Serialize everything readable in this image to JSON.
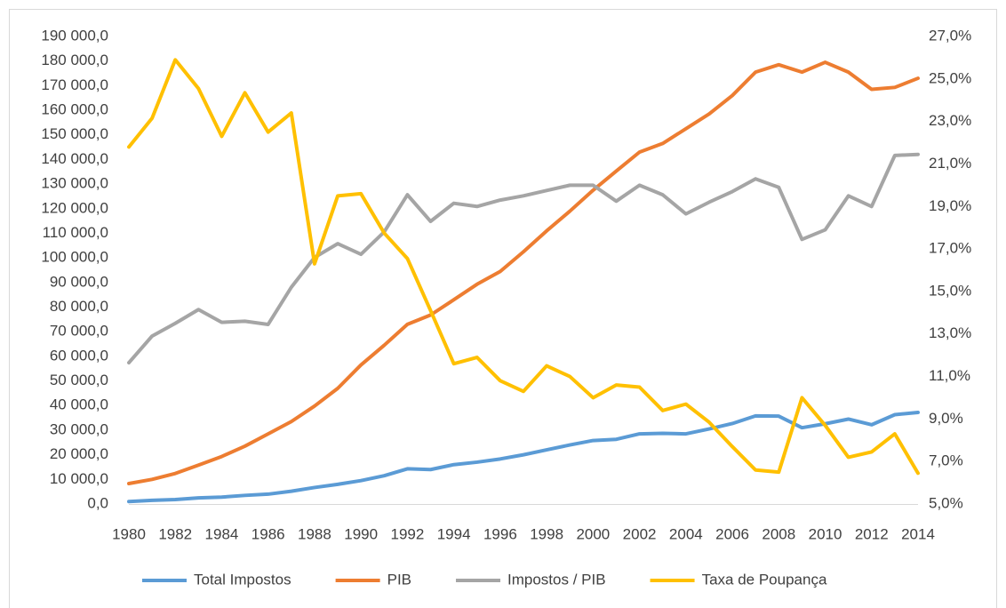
{
  "chart_data": {
    "type": "line",
    "categories": [
      "1980",
      null,
      "1982",
      null,
      "1984",
      null,
      "1986",
      null,
      "1988",
      null,
      "1990",
      null,
      "1992",
      null,
      "1994",
      null,
      "1996",
      null,
      "1998",
      null,
      "2000",
      null,
      "2002",
      null,
      "2004",
      null,
      "2006",
      null,
      "2008",
      null,
      "2010",
      null,
      "2012",
      null,
      "2014"
    ],
    "ylim": [
      0,
      190000
    ],
    "yticks": [
      {
        "value": 0,
        "label": "0,0"
      },
      {
        "value": 10000,
        "label": "10 000,0"
      },
      {
        "value": 20000,
        "label": "20 000,0"
      },
      {
        "value": 30000,
        "label": "30 000,0"
      },
      {
        "value": 40000,
        "label": "40 000,0"
      },
      {
        "value": 50000,
        "label": "50 000,0"
      },
      {
        "value": 60000,
        "label": "60 000,0"
      },
      {
        "value": 70000,
        "label": "70 000,0"
      },
      {
        "value": 80000,
        "label": "80 000,0"
      },
      {
        "value": 90000,
        "label": "90 000,0"
      },
      {
        "value": 100000,
        "label": "100 000,0"
      },
      {
        "value": 110000,
        "label": "110 000,0"
      },
      {
        "value": 120000,
        "label": "120 000,0"
      },
      {
        "value": 130000,
        "label": "130 000,0"
      },
      {
        "value": 140000,
        "label": "140 000,0"
      },
      {
        "value": 150000,
        "label": "150 000,0"
      },
      {
        "value": 160000,
        "label": "160 000,0"
      },
      {
        "value": 170000,
        "label": "170 000,0"
      },
      {
        "value": 180000,
        "label": "180 000,0"
      },
      {
        "value": 190000,
        "label": "190 000,0"
      }
    ],
    "y2lim": [
      5,
      27
    ],
    "y2ticks": [
      {
        "value": 5,
        "label": "5,0%"
      },
      {
        "value": 7,
        "label": "7,0%"
      },
      {
        "value": 9,
        "label": "9,0%"
      },
      {
        "value": 11,
        "label": "11,0%"
      },
      {
        "value": 13,
        "label": "13,0%"
      },
      {
        "value": 15,
        "label": "15,0%"
      },
      {
        "value": 17,
        "label": "17,0%"
      },
      {
        "value": 19,
        "label": "19,0%"
      },
      {
        "value": 21,
        "label": "21,0%"
      },
      {
        "value": 23,
        "label": "23,0%"
      },
      {
        "value": 25,
        "label": "25,0%"
      },
      {
        "value": 27,
        "label": "27,0%"
      }
    ],
    "grid": false,
    "legend": "bottom",
    "series": [
      {
        "name": "Total Impostos",
        "color": "#5b9bd5",
        "axis": "y",
        "values": [
          1000,
          1500,
          1800,
          2500,
          2800,
          3500,
          4000,
          5200,
          6700,
          8000,
          9500,
          11500,
          14300,
          14000,
          16000,
          17000,
          18300,
          20000,
          22000,
          24000,
          25800,
          26300,
          28500,
          28700,
          28500,
          30500,
          32700,
          35800,
          35700,
          31000,
          32600,
          34500,
          32200,
          36300,
          37200
        ]
      },
      {
        "name": "PIB",
        "color": "#ed7d31",
        "axis": "y",
        "values": [
          8300,
          10000,
          12400,
          15800,
          19300,
          23500,
          28500,
          33500,
          39800,
          47000,
          56500,
          64500,
          73000,
          76800,
          83000,
          89300,
          94500,
          102500,
          111000,
          119000,
          127500,
          135300,
          143000,
          146500,
          152500,
          158500,
          166000,
          175500,
          178500,
          175500,
          179500,
          175500,
          168500,
          169300,
          173000
        ]
      },
      {
        "name": "Impostos / PIB",
        "color": "#a5a5a5",
        "axis": "y2",
        "values": [
          11.65,
          12.9,
          13.5,
          14.15,
          13.55,
          13.6,
          13.45,
          15.2,
          16.6,
          17.25,
          16.75,
          17.8,
          19.55,
          18.3,
          19.15,
          19.0,
          19.3,
          19.5,
          19.75,
          20.0,
          20.0,
          19.25,
          20.0,
          19.55,
          18.65,
          19.2,
          19.7,
          20.3,
          19.9,
          17.45,
          17.9,
          19.5,
          19.0,
          21.4,
          21.45
        ]
      },
      {
        "name": "Taxa de Poupança",
        "color": "#ffc000",
        "axis": "y2",
        "values": [
          21.8,
          23.15,
          25.9,
          24.55,
          22.3,
          24.35,
          22.5,
          23.4,
          16.3,
          19.5,
          19.6,
          17.75,
          16.55,
          14.1,
          11.6,
          11.9,
          10.8,
          10.3,
          11.5,
          11.0,
          10.0,
          10.6,
          10.5,
          9.4,
          9.7,
          8.85,
          7.7,
          6.6,
          6.5,
          10.0,
          8.7,
          7.2,
          7.45,
          8.3,
          6.45
        ]
      }
    ]
  }
}
